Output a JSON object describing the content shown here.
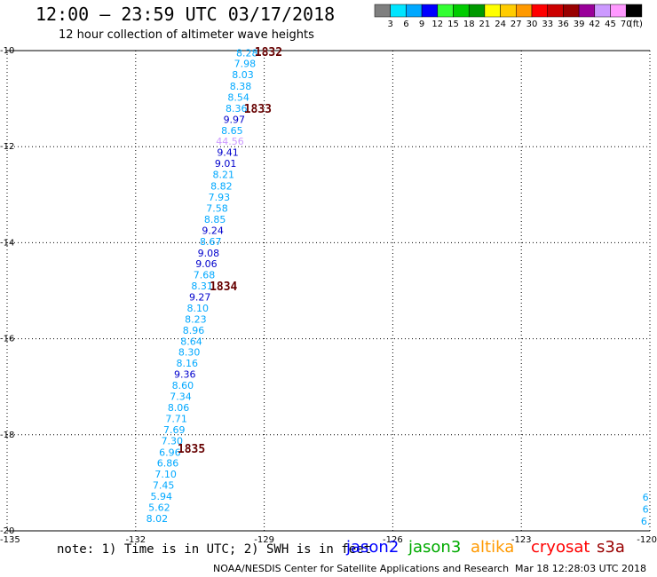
{
  "header": {
    "title": "12:00 – 23:59 UTC 03/17/2018",
    "subtitle": "12 hour collection of altimeter wave heights"
  },
  "color_scale": {
    "labels": [
      "3",
      "6",
      "9",
      "12",
      "15",
      "18",
      "21",
      "24",
      "27",
      "30",
      "33",
      "36",
      "39",
      "42",
      "45",
      "70"
    ],
    "unit": "(ft)",
    "colors": [
      "#7f7f7f",
      "#00e5ff",
      "#00a8ff",
      "#0000ff",
      "#33ff33",
      "#00cc00",
      "#009900",
      "#ffff00",
      "#ffcc00",
      "#ff9900",
      "#ff0000",
      "#cc0000",
      "#990000",
      "#990099",
      "#cc99ff",
      "#ff99ff",
      "#000000"
    ]
  },
  "axes": {
    "lon_ticks": [
      "-135",
      "-132",
      "-129",
      "-126",
      "-123",
      "-120"
    ],
    "lat_ticks": [
      "-10",
      "-12",
      "-14",
      "-16",
      "-18",
      "-20"
    ]
  },
  "chart_data": {
    "type": "scatter",
    "lon_range": [
      -135,
      -120
    ],
    "lat_range": [
      -20,
      -10
    ],
    "points": [
      {
        "lon": -129.4,
        "lat": -10.05,
        "value": "8.28",
        "color": "#00a8ff"
      },
      {
        "lon": -129.45,
        "lat": -10.27,
        "value": "7.98",
        "color": "#00a8ff"
      },
      {
        "lon": -129.5,
        "lat": -10.5,
        "value": "8.03",
        "color": "#00a8ff"
      },
      {
        "lon": -129.55,
        "lat": -10.74,
        "value": "8.38",
        "color": "#00a8ff"
      },
      {
        "lon": -129.6,
        "lat": -10.97,
        "value": "8.54",
        "color": "#00a8ff"
      },
      {
        "lon": -129.65,
        "lat": -11.2,
        "value": "8.36",
        "color": "#00a8ff"
      },
      {
        "lon": -129.7,
        "lat": -11.43,
        "value": "9.97",
        "color": "#0000cc"
      },
      {
        "lon": -129.75,
        "lat": -11.66,
        "value": "8.65",
        "color": "#00a8ff"
      },
      {
        "lon": -129.8,
        "lat": -11.89,
        "value": "44.56",
        "color": "#cc99ff"
      },
      {
        "lon": -129.85,
        "lat": -12.12,
        "value": "9.41",
        "color": "#0000cc"
      },
      {
        "lon": -129.9,
        "lat": -12.35,
        "value": "9.01",
        "color": "#0000cc"
      },
      {
        "lon": -129.95,
        "lat": -12.58,
        "value": "8.21",
        "color": "#00a8ff"
      },
      {
        "lon": -130.0,
        "lat": -12.82,
        "value": "8.82",
        "color": "#00a8ff"
      },
      {
        "lon": -130.05,
        "lat": -13.05,
        "value": "7.93",
        "color": "#00a8ff"
      },
      {
        "lon": -130.1,
        "lat": -13.28,
        "value": "7.58",
        "color": "#00a8ff"
      },
      {
        "lon": -130.15,
        "lat": -13.51,
        "value": "8.85",
        "color": "#00a8ff"
      },
      {
        "lon": -130.2,
        "lat": -13.74,
        "value": "9.24",
        "color": "#0000cc"
      },
      {
        "lon": -130.25,
        "lat": -13.97,
        "value": "8.67",
        "color": "#00a8ff"
      },
      {
        "lon": -130.3,
        "lat": -14.21,
        "value": "9.08",
        "color": "#0000cc"
      },
      {
        "lon": -130.35,
        "lat": -14.44,
        "value": "9.06",
        "color": "#0000cc"
      },
      {
        "lon": -130.4,
        "lat": -14.67,
        "value": "7.68",
        "color": "#00a8ff"
      },
      {
        "lon": -130.45,
        "lat": -14.9,
        "value": "8.31",
        "color": "#00a8ff"
      },
      {
        "lon": -130.5,
        "lat": -15.13,
        "value": "9.27",
        "color": "#0000cc"
      },
      {
        "lon": -130.55,
        "lat": -15.36,
        "value": "8.10",
        "color": "#00a8ff"
      },
      {
        "lon": -130.6,
        "lat": -15.59,
        "value": "8.23",
        "color": "#00a8ff"
      },
      {
        "lon": -130.65,
        "lat": -15.82,
        "value": "8.96",
        "color": "#00a8ff"
      },
      {
        "lon": -130.7,
        "lat": -16.05,
        "value": "8.64",
        "color": "#00a8ff"
      },
      {
        "lon": -130.75,
        "lat": -16.28,
        "value": "8.30",
        "color": "#00a8ff"
      },
      {
        "lon": -130.8,
        "lat": -16.51,
        "value": "8.16",
        "color": "#00a8ff"
      },
      {
        "lon": -130.85,
        "lat": -16.74,
        "value": "9.36",
        "color": "#0000cc"
      },
      {
        "lon": -130.9,
        "lat": -16.97,
        "value": "8.60",
        "color": "#00a8ff"
      },
      {
        "lon": -130.95,
        "lat": -17.2,
        "value": "7.34",
        "color": "#00a8ff"
      },
      {
        "lon": -131.0,
        "lat": -17.43,
        "value": "8.06",
        "color": "#00a8ff"
      },
      {
        "lon": -131.05,
        "lat": -17.66,
        "value": "7.71",
        "color": "#00a8ff"
      },
      {
        "lon": -131.1,
        "lat": -17.89,
        "value": "7.69",
        "color": "#00a8ff"
      },
      {
        "lon": -131.15,
        "lat": -18.12,
        "value": "7.30",
        "color": "#00a8ff"
      },
      {
        "lon": -131.2,
        "lat": -18.36,
        "value": "6.96",
        "color": "#00a8ff"
      },
      {
        "lon": -131.25,
        "lat": -18.59,
        "value": "6.86",
        "color": "#00a8ff"
      },
      {
        "lon": -131.3,
        "lat": -18.82,
        "value": "7.10",
        "color": "#00a8ff"
      },
      {
        "lon": -131.35,
        "lat": -19.05,
        "value": "7.45",
        "color": "#00a8ff"
      },
      {
        "lon": -131.4,
        "lat": -19.28,
        "value": "5.94",
        "color": "#00a8ff"
      },
      {
        "lon": -131.45,
        "lat": -19.51,
        "value": "5.62",
        "color": "#00a8ff"
      },
      {
        "lon": -131.5,
        "lat": -19.74,
        "value": "8.02",
        "color": "#00a8ff"
      },
      {
        "lon": -120.1,
        "lat": -19.3,
        "value": "6",
        "color": "#00a8ff"
      },
      {
        "lon": -120.1,
        "lat": -19.55,
        "value": "6",
        "color": "#00a8ff"
      },
      {
        "lon": -120.1,
        "lat": -19.8,
        "value": "6.",
        "color": "#00a8ff"
      }
    ],
    "revolutions": [
      {
        "lon": -128.9,
        "lat": -10.02,
        "label": "1832"
      },
      {
        "lon": -129.15,
        "lat": -11.2,
        "label": "1833"
      },
      {
        "lon": -129.95,
        "lat": -14.9,
        "label": "1834"
      },
      {
        "lon": -130.7,
        "lat": -18.28,
        "label": "1835"
      }
    ]
  },
  "footer": {
    "note": "note: 1) Time is in UTC; 2) SWH is in feet",
    "satellites": [
      {
        "label": "jason2",
        "color": "#0000ff"
      },
      {
        "label": "jason3",
        "color": "#00aa00"
      },
      {
        "label": "altika",
        "color": "#ff9900"
      },
      {
        "label": "cryosat",
        "color": "#ff0000"
      },
      {
        "label": "s3a",
        "color": "#990000"
      }
    ],
    "credit": "NOAA/NESDIS Center for Satellite Applications and Research",
    "timestamp": "Mar 18 12:28:03 UTC 2018"
  }
}
